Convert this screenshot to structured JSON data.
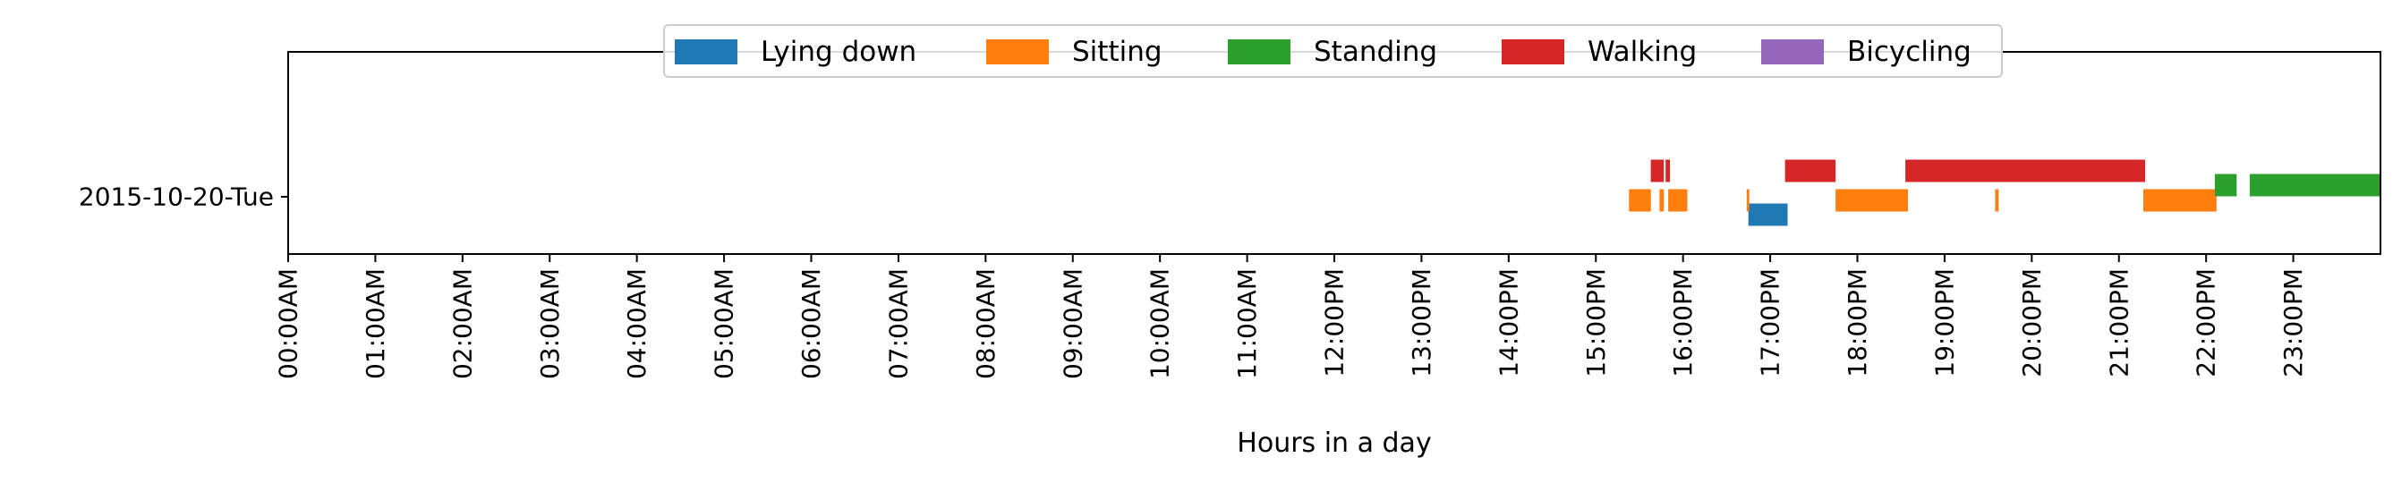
{
  "chart_data": {
    "type": "timeline",
    "xlabel": "Hours in a day",
    "ylabel": "",
    "xlim": [
      0,
      24
    ],
    "x_ticks": [
      "00:00AM",
      "01:00AM",
      "02:00AM",
      "03:00AM",
      "04:00AM",
      "05:00AM",
      "06:00AM",
      "07:00AM",
      "08:00AM",
      "09:00AM",
      "10:00AM",
      "11:00AM",
      "12:00PM",
      "13:00PM",
      "14:00PM",
      "15:00PM",
      "16:00PM",
      "17:00PM",
      "18:00PM",
      "19:00PM",
      "20:00PM",
      "21:00PM",
      "22:00PM",
      "23:00PM"
    ],
    "categories": [
      "2015-10-20-Tue"
    ],
    "legend": {
      "placement": "upper-center",
      "columns": 5
    },
    "series": [
      {
        "name": "Lying down",
        "color": "#1f77b4",
        "segments": [
          [
            16.75,
            17.2
          ]
        ]
      },
      {
        "name": "Sitting",
        "color": "#ff7f0e",
        "segments": [
          [
            15.38,
            15.63
          ],
          [
            15.73,
            15.78
          ],
          [
            15.83,
            16.05
          ],
          [
            16.73,
            16.76
          ],
          [
            17.75,
            18.58
          ],
          [
            19.58,
            19.62
          ],
          [
            21.28,
            22.12
          ]
        ]
      },
      {
        "name": "Standing",
        "color": "#2ca02c",
        "segments": [
          [
            22.1,
            22.35
          ],
          [
            22.5,
            24.0
          ]
        ]
      },
      {
        "name": "Walking",
        "color": "#d62728",
        "segments": [
          [
            15.63,
            15.78
          ],
          [
            15.8,
            15.85
          ],
          [
            17.17,
            17.75
          ],
          [
            18.55,
            21.3
          ]
        ]
      },
      {
        "name": "Bicycling",
        "color": "#9467bd",
        "segments": []
      }
    ]
  }
}
